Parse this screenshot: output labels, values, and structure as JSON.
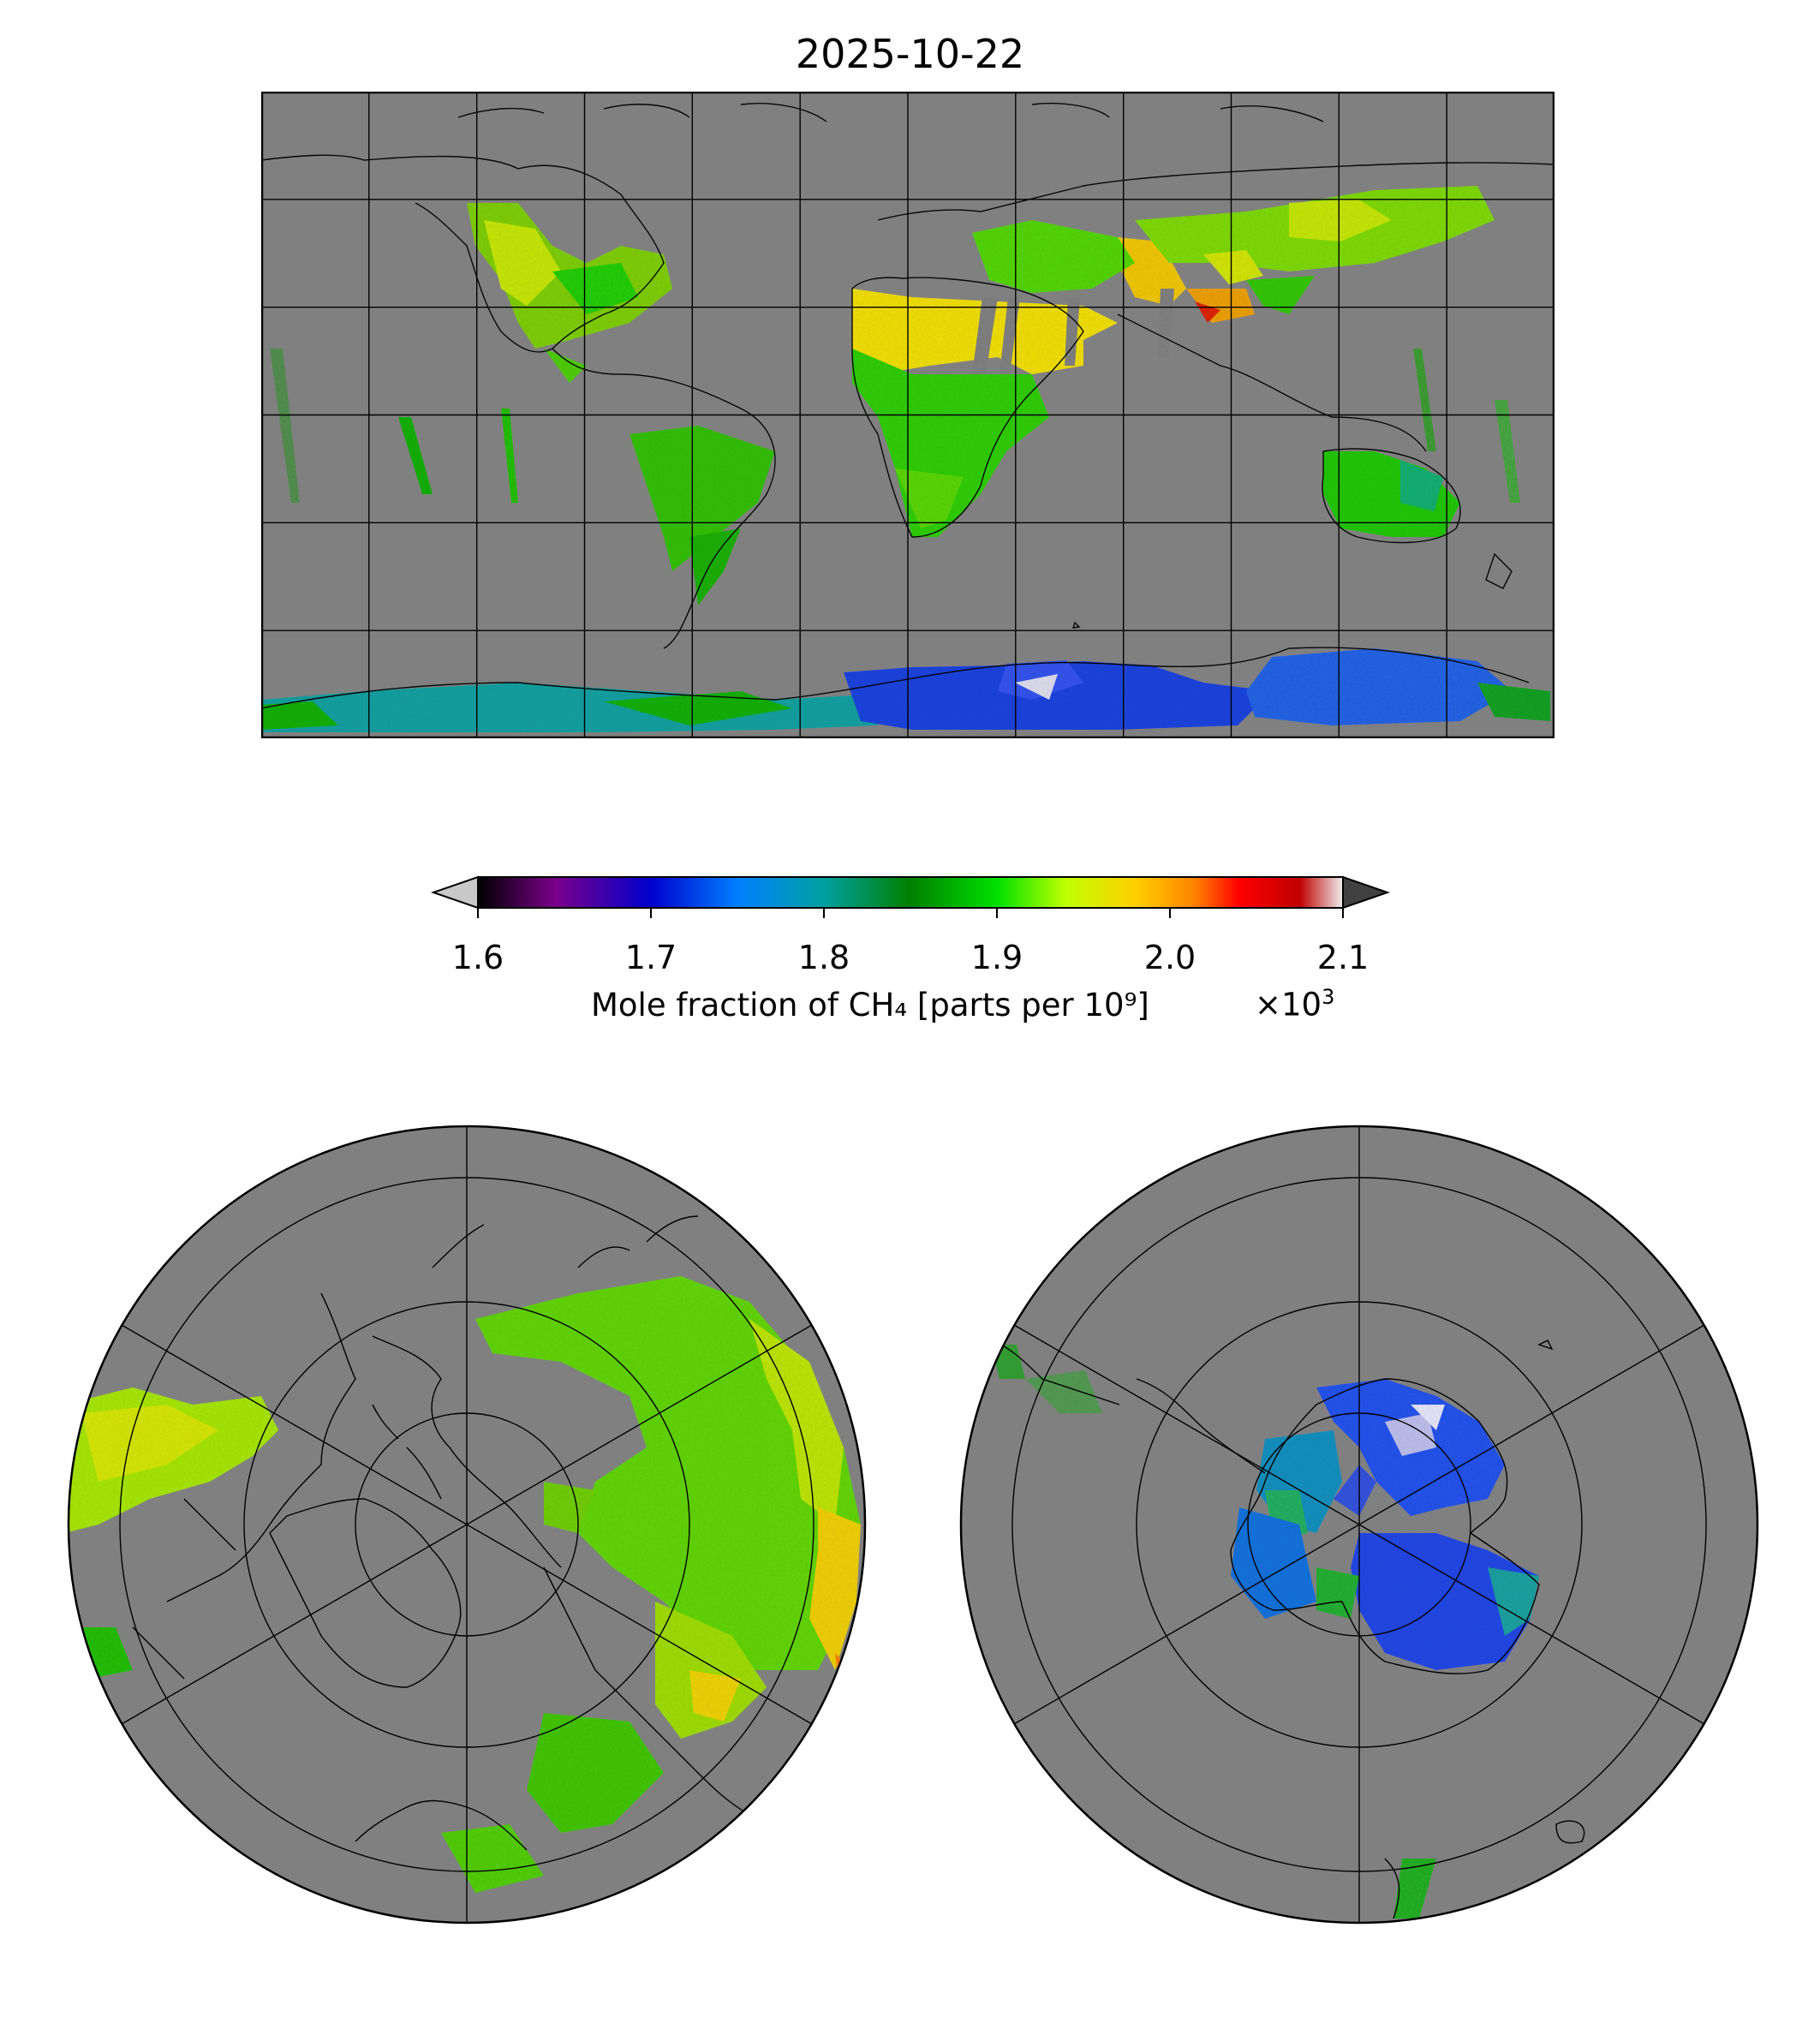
{
  "title": "2025-10-22",
  "colorbar": {
    "ticks": [
      "1.6",
      "1.7",
      "1.8",
      "1.9",
      "2.0",
      "2.1"
    ],
    "tick_values": [
      1.6,
      1.7,
      1.8,
      1.9,
      2.0,
      2.1
    ],
    "label": "Mole fraction of CH₄ [parts per 10⁹]",
    "multiplier_base": "×10",
    "multiplier_exp": "3",
    "colors": [
      "#000000",
      "#7a008a",
      "#0000cc",
      "#0080ff",
      "#00a0a0",
      "#008000",
      "#00e000",
      "#c0ff00",
      "#ffd000",
      "#ff8000",
      "#ff0000",
      "#c00000",
      "#eeeeee"
    ],
    "under_color": "#c8c8c8",
    "over_color": "#404040"
  },
  "map": {
    "background": "#808080",
    "coastline_color": "#000000",
    "panels": [
      "global-platecarree",
      "north-polar-stereographic",
      "south-polar-stereographic"
    ]
  }
}
